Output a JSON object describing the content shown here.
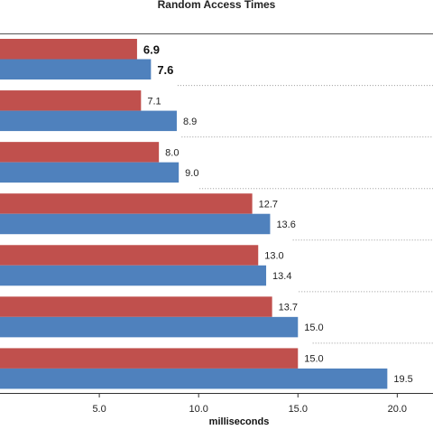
{
  "chart_data": {
    "type": "bar",
    "orientation": "horizontal",
    "title": "Random Access Times",
    "xlabel": "milliseconds",
    "ylabel": "",
    "xlim": [
      0,
      21.8
    ],
    "xticks": [
      "5.0",
      "10.0",
      "15.0",
      "20.0"
    ],
    "xtick_values": [
      5,
      10,
      15,
      20
    ],
    "grid": "dotted separators between groups",
    "series": [
      {
        "color": "#c0504d",
        "values": [
          6.9,
          7.1,
          8.0,
          12.7,
          13.0,
          13.7,
          15.0
        ],
        "labels": [
          "6.9",
          "7.1",
          "8.0",
          "12.7",
          "13.0",
          "13.7",
          "15.0"
        ]
      },
      {
        "color": "#4f81bd",
        "values": [
          7.6,
          8.9,
          9.0,
          13.6,
          13.4,
          15.0,
          19.5
        ],
        "labels": [
          "7.6",
          "8.9",
          "9.0",
          "13.6",
          "13.4",
          "15.0",
          "19.5"
        ]
      }
    ],
    "highlight_group": 0
  }
}
